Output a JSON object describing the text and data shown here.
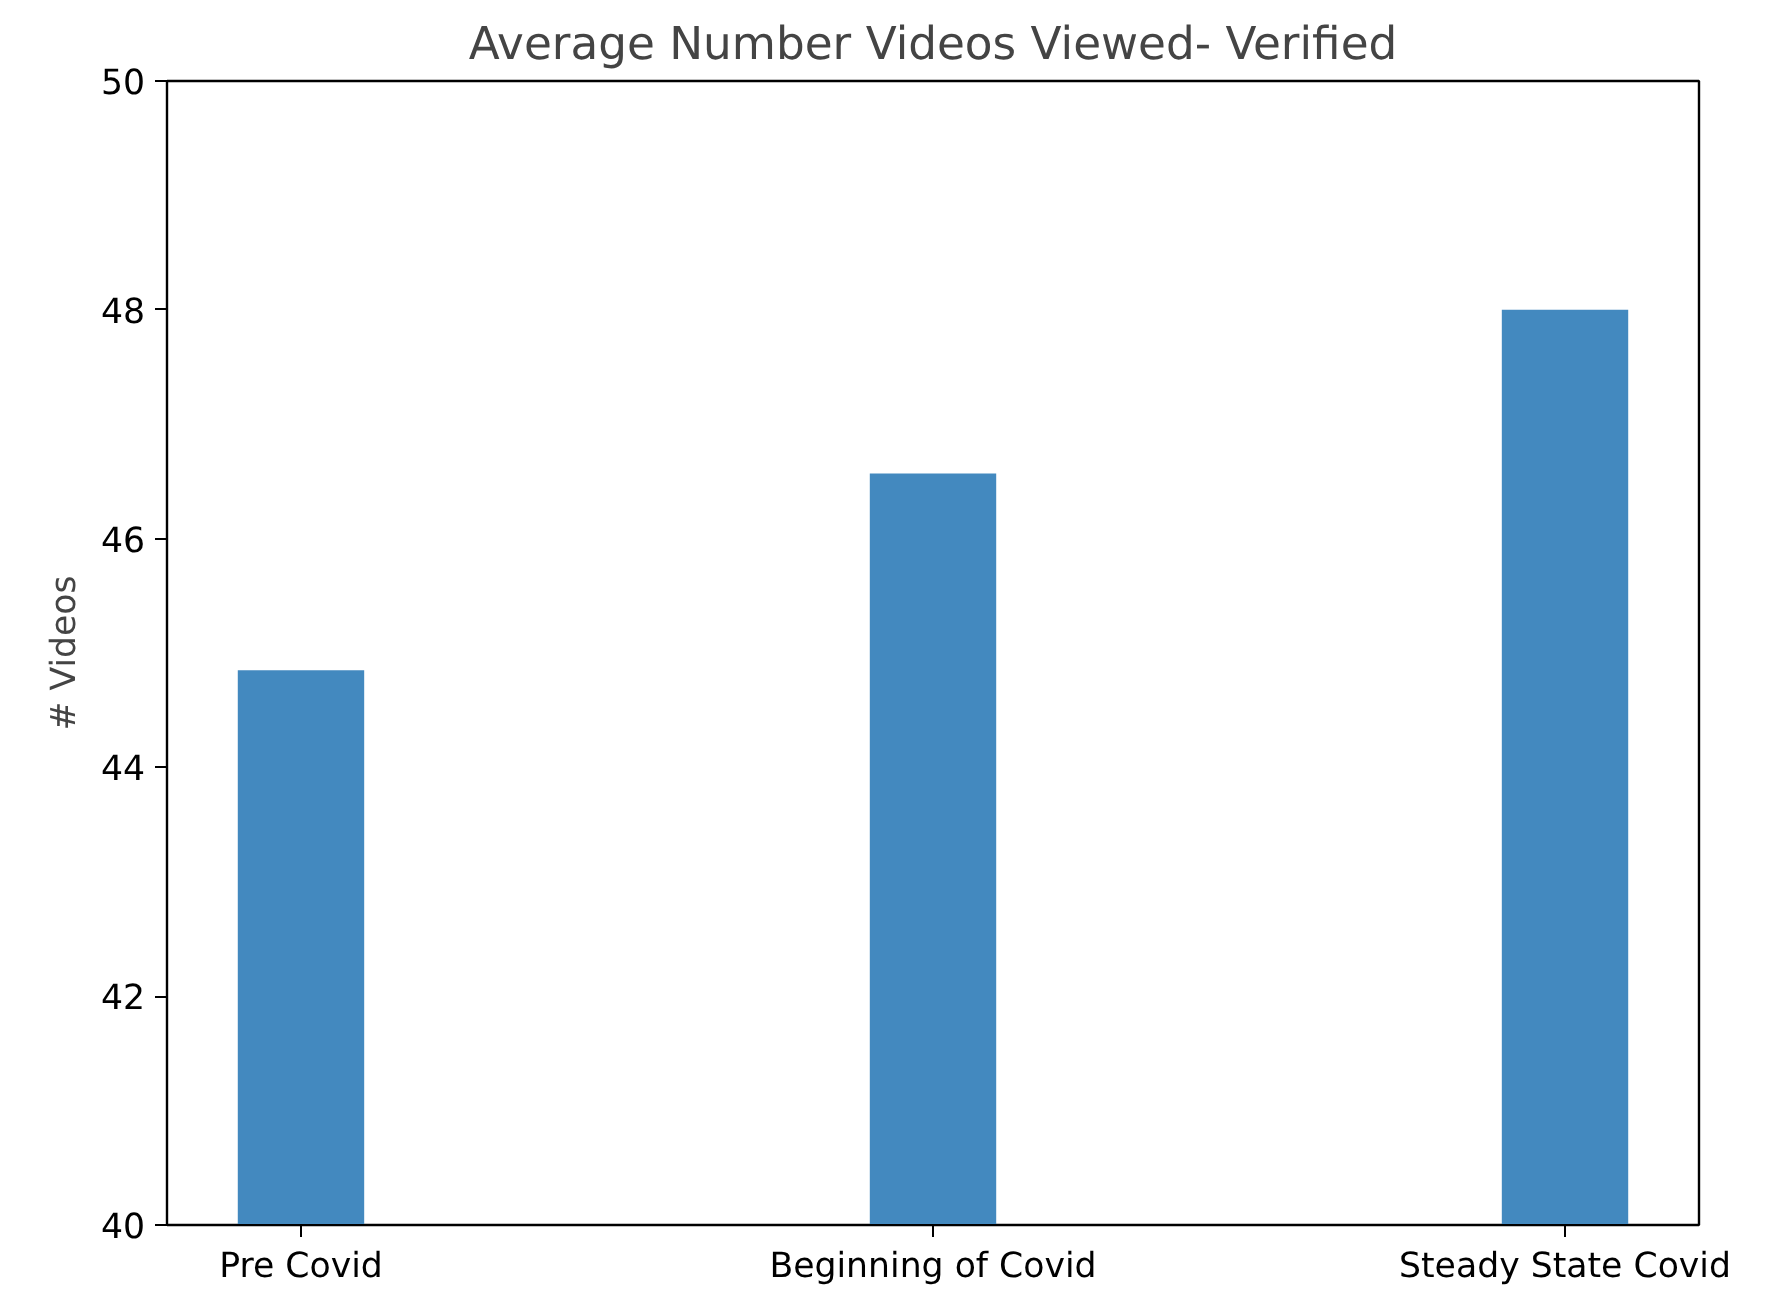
{
  "chart_data": {
    "type": "bar",
    "title": "Average Number Videos Viewed- Verified",
    "ylabel": "# Videos",
    "categories": [
      "Pre Covid",
      "Beginning of Covid",
      "Steady State Covid"
    ],
    "values": [
      44.85,
      46.57,
      48.0
    ],
    "color": "#4389bf",
    "ylim": [
      40,
      50
    ],
    "yticks": [
      40,
      42,
      44,
      46,
      48,
      50
    ],
    "grid": false
  }
}
